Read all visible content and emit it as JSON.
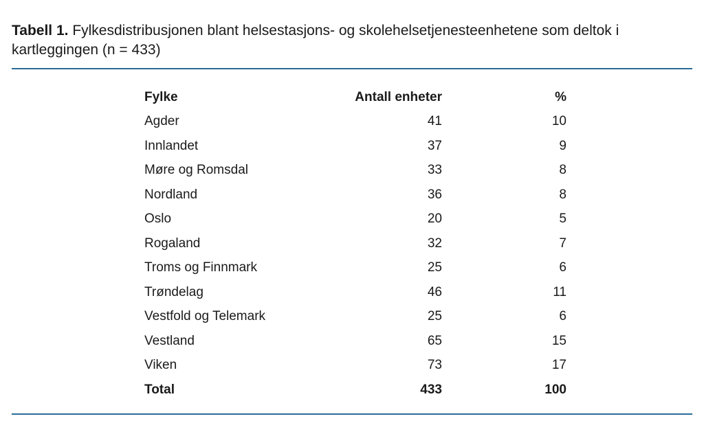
{
  "caption": {
    "label": "Tabell 1.",
    "text": " Fylkesdistribusjonen blant helsestasjons- og skolehelsetjenesteenhetene som deltok i kartleggingen (n = 433)"
  },
  "colors": {
    "rule": "#2a6b96"
  },
  "table": {
    "headers": [
      "Fylke",
      "Antall enheter",
      "%"
    ],
    "rows": [
      [
        "Agder",
        "41",
        "10"
      ],
      [
        "Innlandet",
        "37",
        "9"
      ],
      [
        "Møre og Romsdal",
        "33",
        "8"
      ],
      [
        "Nordland",
        "36",
        "8"
      ],
      [
        "Oslo",
        "20",
        "5"
      ],
      [
        "Rogaland",
        "32",
        "7"
      ],
      [
        "Troms og Finnmark",
        "25",
        "6"
      ],
      [
        "Trøndelag",
        "46",
        "11"
      ],
      [
        "Vestfold og Telemark",
        "25",
        "6"
      ],
      [
        "Vestland",
        "65",
        "15"
      ],
      [
        "Viken",
        "73",
        "17"
      ]
    ],
    "total": [
      "Total",
      "433",
      "100"
    ]
  }
}
